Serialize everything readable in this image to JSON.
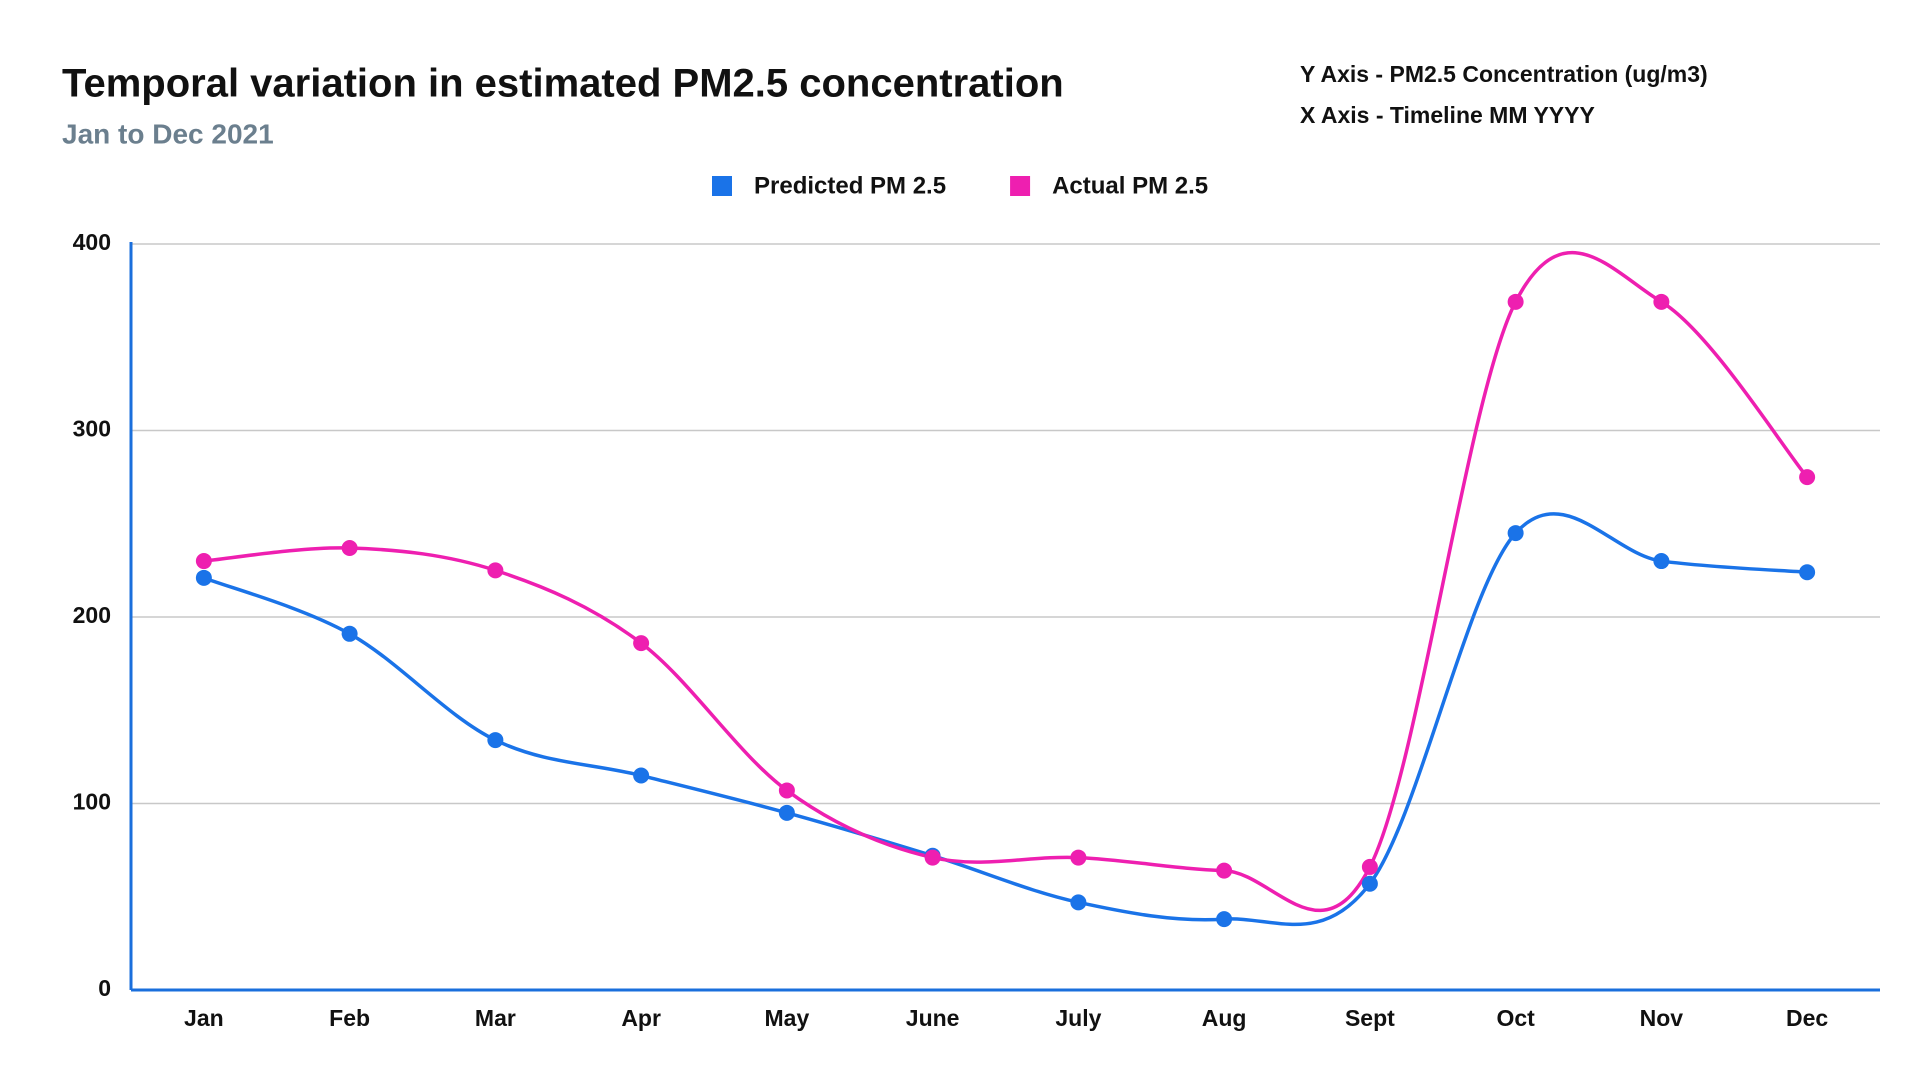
{
  "chart_data": {
    "type": "line",
    "title": "Temporal variation in estimated PM2.5 concentration",
    "subtitle": "Jan to Dec 2021",
    "annotations": [
      "Y Axis - PM2.5 Concentration (ug/m3)",
      "X Axis - Timeline MM YYYY"
    ],
    "categories": [
      "Jan",
      "Feb",
      "Mar",
      "Apr",
      "May",
      "June",
      "July",
      "Aug",
      "Sept",
      "Oct",
      "Nov",
      "Dec"
    ],
    "series": [
      {
        "name": "Predicted PM 2.5",
        "color": "#1a73e8",
        "values": [
          221,
          191,
          134,
          115,
          95,
          72,
          47,
          38,
          57,
          245,
          230,
          224
        ]
      },
      {
        "name": "Actual PM 2.5",
        "color": "#ee1fb0",
        "values": [
          230,
          237,
          225,
          186,
          107,
          71,
          71,
          64,
          66,
          369,
          369,
          275
        ]
      }
    ],
    "ylim": [
      0,
      400
    ],
    "yticks": [
      0,
      100,
      200,
      300,
      400
    ],
    "grid": true,
    "legend": "top"
  }
}
